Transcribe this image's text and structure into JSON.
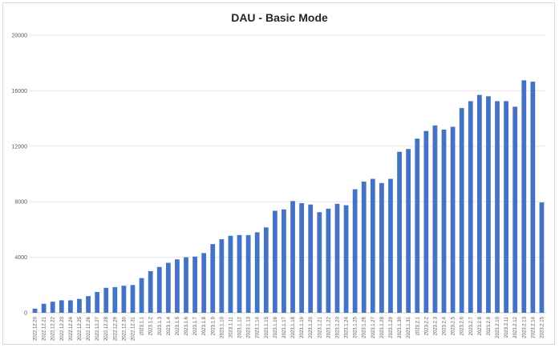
{
  "chart_data": {
    "type": "bar",
    "title": "DAU - Basic Mode",
    "xlabel": "",
    "ylabel": "",
    "ylim": [
      0,
      20000
    ],
    "yticks": [
      "0",
      "4000",
      "8000",
      "12000",
      "16000",
      "20000"
    ],
    "grid": true,
    "bar_color": "#4472c4",
    "categories": [
      "2022.12.20",
      "2022.12.21",
      "2022.12.22",
      "2022.12.23",
      "2022.12.24",
      "2022.12.25",
      "2022.12.26",
      "2022.12.27",
      "2022.12.28",
      "2022.12.29",
      "2022.12.30",
      "2022.12.31",
      "2023.1.1",
      "2023.1.2",
      "2023.1.3",
      "2023.1.4",
      "2023.1.5",
      "2023.1.6",
      "2023.1.7",
      "2023.1.8",
      "2023.1.9",
      "2023.1.10",
      "2023.1.11",
      "2023.1.12",
      "2023.1.13",
      "2023.1.14",
      "2023.1.15",
      "2023.1.16",
      "2023.1.17",
      "2023.1.18",
      "2023.1.19",
      "2023.1.20",
      "2023.1.21",
      "2023.1.22",
      "2023.1.23",
      "2023.1.24",
      "2023.1.25",
      "2023.1.26",
      "2023.1.27",
      "2023.1.28",
      "2023.1.29",
      "2023.1.30",
      "2023.1.31",
      "2023.2.1",
      "2023.2.2",
      "2023.2.3",
      "2023.2.4",
      "2023.2.5",
      "2023.2.6",
      "2023.2.7",
      "2023.2.8",
      "2023.2.9",
      "2023.2.10",
      "2023.2.11",
      "2023.2.12",
      "2023.2.13",
      "2023.2.14",
      "2023.2.15"
    ],
    "values": [
      300,
      650,
      800,
      900,
      900,
      1000,
      1200,
      1500,
      1800,
      1850,
      1950,
      2000,
      2500,
      3000,
      3300,
      3600,
      3850,
      4000,
      4050,
      4300,
      4950,
      5300,
      5550,
      5600,
      5600,
      5800,
      6150,
      7350,
      7450,
      8050,
      7900,
      7800,
      7250,
      7500,
      7850,
      7750,
      8900,
      9450,
      9650,
      9350,
      9650,
      11600,
      11800,
      12550,
      13100,
      13500,
      13200,
      13400,
      14750,
      15250,
      15700,
      15600,
      15250,
      15250,
      14850,
      16750,
      16650,
      7950
    ]
  }
}
